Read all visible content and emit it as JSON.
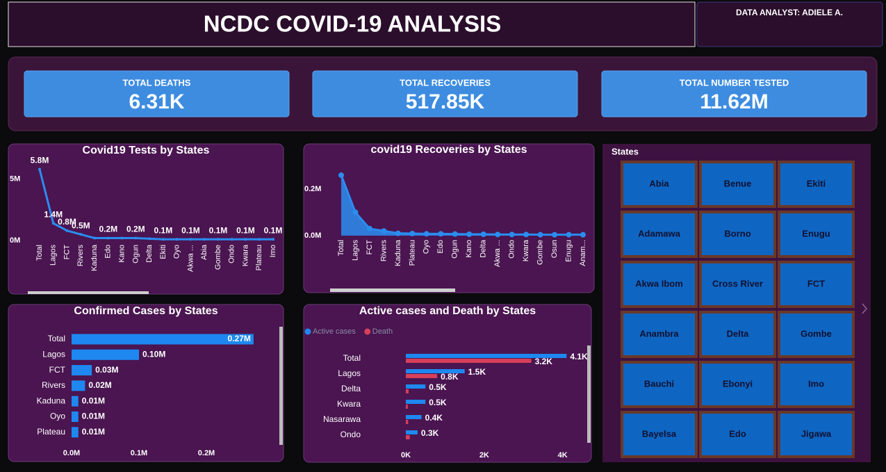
{
  "header": {
    "title": "NCDC COVID-19 ANALYSIS",
    "analyst": "DATA ANALYST: ADIELE A."
  },
  "kpis": [
    {
      "label": "TOTAL DEATHS",
      "value": "6.31K"
    },
    {
      "label": "TOTAL RECOVERIES",
      "value": "517.85K"
    },
    {
      "label": "TOTAL NUMBER TESTED",
      "value": "11.62M"
    }
  ],
  "chart_data": [
    {
      "type": "line",
      "title": "Covid19 Tests by States",
      "color": "#2b8cf0",
      "categories": [
        "Total",
        "Lagos",
        "FCT",
        "Rivers",
        "Kaduna",
        "Edo",
        "Kano",
        "Ogun",
        "Delta",
        "Ekiti",
        "Oyo",
        "Akwa ...",
        "Abia",
        "Gombe",
        "Ondo",
        "Kwara",
        "Plateau",
        "Imo"
      ],
      "values": [
        5.8,
        1.4,
        0.8,
        0.5,
        0.2,
        0.2,
        0.2,
        0.2,
        0.15,
        0.1,
        0.1,
        0.1,
        0.1,
        0.1,
        0.1,
        0.1,
        0.1,
        0.1
      ],
      "value_labels": [
        "5.8M",
        "1.4M",
        "0.8M",
        "0.5M",
        null,
        "0.2M",
        null,
        "0.2M",
        null,
        "0.1M",
        null,
        "0.1M",
        null,
        "0.1M",
        null,
        "0.1M",
        null,
        "0.1M"
      ],
      "ylim": [
        0,
        6
      ],
      "yticks": [
        {
          "value": 0,
          "label": "0M"
        },
        {
          "value": 5,
          "label": "5M"
        }
      ]
    },
    {
      "type": "area",
      "title": "covid19 Recoveries by States",
      "color": "#2b8cf0",
      "categories": [
        "Total",
        "Lagos",
        "FCT",
        "Rivers",
        "Kaduna",
        "Plateau",
        "Oyo",
        "Edo",
        "Ogun",
        "Kano",
        "Delta",
        "Akwa ...",
        "Ondo",
        "Kwara",
        "Gombe",
        "Osun",
        "Enugu",
        "Anam..."
      ],
      "values": [
        0.259,
        0.1,
        0.03,
        0.02,
        0.01,
        0.009,
        0.008,
        0.008,
        0.007,
        0.006,
        0.006,
        0.005,
        0.005,
        0.005,
        0.004,
        0.004,
        0.004,
        0.004
      ],
      "ylim": [
        0,
        0.28
      ],
      "yticks": [
        {
          "value": 0,
          "label": "0.0M"
        },
        {
          "value": 0.2,
          "label": "0.2M"
        }
      ]
    },
    {
      "type": "hbar",
      "title": "Confirmed Cases by States",
      "color": "#1e88f0",
      "categories": [
        "Total",
        "Lagos",
        "FCT",
        "Rivers",
        "Kaduna",
        "Oyo",
        "Plateau"
      ],
      "values": [
        0.27,
        0.1,
        0.03,
        0.02,
        0.01,
        0.01,
        0.01
      ],
      "value_labels": [
        "0.27M",
        "0.10M",
        "0.03M",
        "0.02M",
        "0.01M",
        "0.01M",
        "0.01M"
      ],
      "xlim": [
        0,
        0.3
      ],
      "xticks": [
        {
          "value": 0,
          "label": "0.0M"
        },
        {
          "value": 0.1,
          "label": "0.1M"
        },
        {
          "value": 0.2,
          "label": "0.2M"
        }
      ]
    },
    {
      "type": "grouped-hbar",
      "title": "Active cases and Death by States",
      "categories": [
        "Total",
        "Lagos",
        "Delta",
        "Kwara",
        "Nasarawa",
        "Ondo"
      ],
      "series": [
        {
          "name": "Active cases",
          "color": "#1e88f0",
          "values": [
            4.1,
            1.5,
            0.5,
            0.5,
            0.4,
            0.3
          ],
          "value_labels": [
            "4.1K",
            "1.5K",
            "0.5K",
            "0.5K",
            "0.4K",
            "0.3K"
          ]
        },
        {
          "name": "Death",
          "color": "#d6405a",
          "values": [
            3.2,
            0.8,
            0.07,
            0.05,
            0.06,
            0.1
          ],
          "value_labels": [
            "3.2K",
            "0.8K",
            null,
            null,
            null,
            null
          ]
        }
      ],
      "xlim": [
        0,
        4.2
      ],
      "xticks": [
        {
          "value": 0,
          "label": "0K"
        },
        {
          "value": 2,
          "label": "2K"
        },
        {
          "value": 4,
          "label": "4K"
        }
      ]
    }
  ],
  "slicer": {
    "title": "States",
    "items": [
      "Abia",
      "Benue",
      "Ekiti",
      "Adamawa",
      "Borno",
      "Enugu",
      "Akwa Ibom",
      "Cross River",
      "FCT",
      "Anambra",
      "Delta",
      "Gombe",
      "Bauchi",
      "Ebonyi",
      "Imo",
      "Bayelsa",
      "Edo",
      "Jigawa"
    ]
  }
}
